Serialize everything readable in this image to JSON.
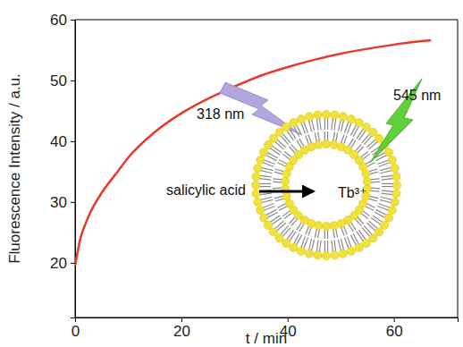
{
  "chart_data": {
    "type": "line",
    "x": [
      0,
      1,
      2,
      3,
      5,
      8,
      10,
      15,
      20,
      25,
      30,
      35,
      40,
      45,
      50,
      55,
      60,
      67
    ],
    "values": [
      19.5,
      24,
      26.5,
      28.5,
      31.5,
      35,
      37.3,
      41.5,
      44.6,
      47,
      49,
      50.8,
      52.2,
      53.4,
      54.4,
      55.2,
      55.9,
      56.6
    ],
    "color": "#e8392e",
    "xlabel": "t / min",
    "ylabel": "Fluorescence Intensity / a.u.",
    "xlim": [
      0,
      72
    ],
    "ylim": [
      11,
      60
    ],
    "xticks": [
      0,
      20,
      40,
      60
    ],
    "yticks": [
      20,
      30,
      40,
      50,
      60
    ],
    "annotations": [
      "318 nm",
      "545 nm",
      "salicylic acid",
      "Tb³⁺"
    ]
  }
}
